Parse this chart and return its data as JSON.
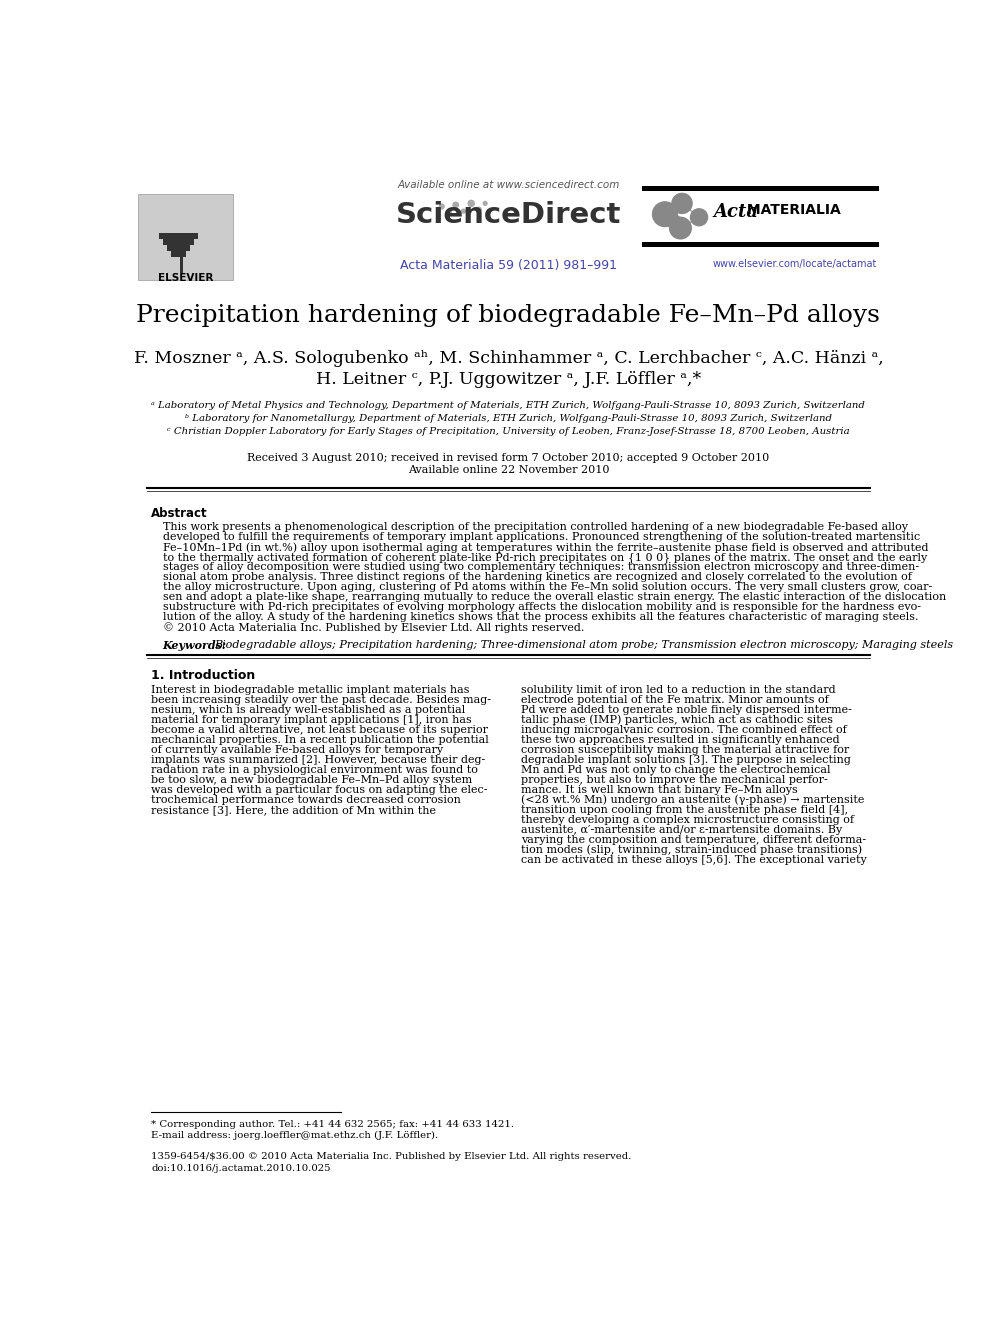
{
  "title": "Precipitation hardening of biodegradable Fe–Mn–Pd alloys",
  "authors_line1": "F. Moszner ᵃ, A.S. Sologubenko ᵃʰ, M. Schinhammer ᵃ, C. Lerchbacher ᶜ, A.C. Hänzi ᵃ,",
  "authors_line2": "H. Leitner ᶜ, P.J. Uggowitzer ᵃ, J.F. Löffler ᵃ,*",
  "affil_a": "ᵃ Laboratory of Metal Physics and Technology, Department of Materials, ETH Zurich, Wolfgang-Pauli-Strasse 10, 8093 Zurich, Switzerland",
  "affil_b": "ᵇ Laboratory for Nanometallurgy, Department of Materials, ETH Zurich, Wolfgang-Pauli-Strasse 10, 8093 Zurich, Switzerland",
  "affil_c": "ᶜ Christian Doppler Laboratory for Early Stages of Precipitation, University of Leoben, Franz-Josef-Strasse 18, 8700 Leoben, Austria",
  "received": "Received 3 August 2010; received in revised form 7 October 2010; accepted 9 October 2010",
  "available": "Available online 22 November 2010",
  "journal": "Acta Materialia 59 (2011) 981–991",
  "available_online": "Available online at www.sciencedirect.com",
  "website": "www.elsevier.com/locate/actamat",
  "abstract_title": "Abstract",
  "abstract_lines": [
    "This work presents a phenomenological description of the precipitation controlled hardening of a new biodegradable Fe-based alloy",
    "developed to fulfill the requirements of temporary implant applications. Pronounced strengthening of the solution-treated martensitic",
    "Fe–10Mn–1Pd (in wt.%) alloy upon isothermal aging at temperatures within the ferrite–austenite phase field is observed and attributed",
    "to the thermally activated formation of coherent plate-like Pd-rich precipitates on {1 0 0} planes of the matrix. The onset and the early",
    "stages of alloy decomposition were studied using two complementary techniques: transmission electron microscopy and three-dimen-",
    "sional atom probe analysis. Three distinct regions of the hardening kinetics are recognized and closely correlated to the evolution of",
    "the alloy microstructure. Upon aging, clustering of Pd atoms within the Fe–Mn solid solution occurs. The very small clusters grow, coar-",
    "sen and adopt a plate-like shape, rearranging mutually to reduce the overall elastic strain energy. The elastic interaction of the dislocation",
    "substructure with Pd-rich precipitates of evolving morphology affects the dislocation mobility and is responsible for the hardness evo-",
    "lution of the alloy. A study of the hardening kinetics shows that the process exhibits all the features characteristic of maraging steels.",
    "© 2010 Acta Materialia Inc. Published by Elsevier Ltd. All rights reserved."
  ],
  "keywords_label": "Keywords:",
  "keywords_text": "Biodegradable alloys; Precipitation hardening; Three-dimensional atom probe; Transmission electron microscopy; Maraging steels",
  "section1_title": "1. Introduction",
  "col1_lines": [
    "Interest in biodegradable metallic implant materials has",
    "been increasing steadily over the past decade. Besides mag-",
    "nesium, which is already well-established as a potential",
    "material for temporary implant applications [1], iron has",
    "become a valid alternative, not least because of its superior",
    "mechanical properties. In a recent publication the potential",
    "of currently available Fe-based alloys for temporary",
    "implants was summarized [2]. However, because their deg-",
    "radation rate in a physiological environment was found to",
    "be too slow, a new biodegradable Fe–Mn–Pd alloy system",
    "was developed with a particular focus on adapting the elec-",
    "trochemical performance towards decreased corrosion",
    "resistance [3]. Here, the addition of Mn within the"
  ],
  "col2_lines": [
    "solubility limit of iron led to a reduction in the standard",
    "electrode potential of the Fe matrix. Minor amounts of",
    "Pd were added to generate noble finely dispersed interme-",
    "tallic phase (IMP) particles, which act as cathodic sites",
    "inducing microgalvanic corrosion. The combined effect of",
    "these two approaches resulted in significantly enhanced",
    "corrosion susceptibility making the material attractive for",
    "degradable implant solutions [3]. The purpose in selecting",
    "Mn and Pd was not only to change the electrochemical",
    "properties, but also to improve the mechanical perfor-",
    "mance. It is well known that binary Fe–Mn alloys",
    "(<28 wt.% Mn) undergo an austenite (γ-phase) → martensite",
    "transition upon cooling from the austenite phase field [4],",
    "thereby developing a complex microstructure consisting of",
    "austenite, α′-martensite and/or ε-martensite domains. By",
    "varying the composition and temperature, different deforma-",
    "tion modes (slip, twinning, strain-induced phase transitions)",
    "can be activated in these alloys [5,6]. The exceptional variety"
  ],
  "footnote_corresponding": "* Corresponding author. Tel.: +41 44 632 2565; fax: +41 44 633 1421.",
  "footnote_email": "E-mail address: joerg.loeffler@mat.ethz.ch (J.F. Löffler).",
  "copyright_bottom": "1359-6454/$36.00 © 2010 Acta Materialia Inc. Published by Elsevier Ltd. All rights reserved.",
  "doi": "doi:10.1016/j.actamat.2010.10.025",
  "bg_color": "#ffffff",
  "text_color": "#000000",
  "link_color": "#4444aa"
}
